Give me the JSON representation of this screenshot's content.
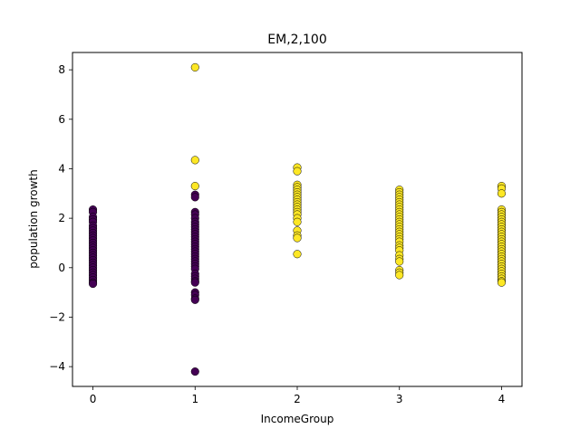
{
  "chart_data": {
    "type": "scatter",
    "title": "EM,2,100",
    "xlabel": "IncomeGroup",
    "ylabel": "population growth",
    "xlim": [
      -0.2,
      4.2
    ],
    "ylim": [
      -4.8,
      8.7
    ],
    "xticks": [
      0,
      1,
      2,
      3,
      4
    ],
    "yticks": [
      -4,
      -2,
      0,
      2,
      4,
      6,
      8
    ],
    "grid": false,
    "legend": "none",
    "colors": {
      "cluster_0": "#440154",
      "cluster_1": "#fde725"
    },
    "series": [
      {
        "cluster": 0,
        "color": "#440154",
        "points": [
          [
            0,
            2.35
          ],
          [
            0,
            2.25
          ],
          [
            0,
            2.05
          ],
          [
            0,
            1.95
          ],
          [
            0,
            1.85
          ],
          [
            0,
            1.7
          ],
          [
            0,
            1.6
          ],
          [
            0,
            1.5
          ],
          [
            0,
            1.4
          ],
          [
            0,
            1.3
          ],
          [
            0,
            1.2
          ],
          [
            0,
            1.1
          ],
          [
            0,
            1.0
          ],
          [
            0,
            0.9
          ],
          [
            0,
            0.8
          ],
          [
            0,
            0.7
          ],
          [
            0,
            0.6
          ],
          [
            0,
            0.5
          ],
          [
            0,
            0.4
          ],
          [
            0,
            0.3
          ],
          [
            0,
            0.2
          ],
          [
            0,
            0.1
          ],
          [
            0,
            0.0
          ],
          [
            0,
            -0.1
          ],
          [
            0,
            -0.2
          ],
          [
            0,
            -0.3
          ],
          [
            0,
            -0.4
          ],
          [
            0,
            -0.5
          ],
          [
            0,
            -0.6
          ],
          [
            0,
            -0.65
          ],
          [
            1,
            2.95
          ],
          [
            1,
            2.85
          ],
          [
            1,
            2.25
          ],
          [
            1,
            2.15
          ],
          [
            1,
            2.0
          ],
          [
            1,
            1.85
          ],
          [
            1,
            1.75
          ],
          [
            1,
            1.65
          ],
          [
            1,
            1.55
          ],
          [
            1,
            1.45
          ],
          [
            1,
            1.35
          ],
          [
            1,
            1.25
          ],
          [
            1,
            1.15
          ],
          [
            1,
            1.05
          ],
          [
            1,
            0.95
          ],
          [
            1,
            0.85
          ],
          [
            1,
            0.75
          ],
          [
            1,
            0.65
          ],
          [
            1,
            0.55
          ],
          [
            1,
            0.45
          ],
          [
            1,
            0.35
          ],
          [
            1,
            0.25
          ],
          [
            1,
            0.15
          ],
          [
            1,
            0.05
          ],
          [
            1,
            -0.05
          ],
          [
            1,
            -0.25
          ],
          [
            1,
            -0.35
          ],
          [
            1,
            -0.45
          ],
          [
            1,
            -0.55
          ],
          [
            1,
            -0.6
          ],
          [
            1,
            -1.0
          ],
          [
            1,
            -1.1
          ],
          [
            1,
            -1.25
          ],
          [
            1,
            -1.3
          ],
          [
            1,
            -4.2
          ]
        ]
      },
      {
        "cluster": 1,
        "color": "#fde725",
        "points": [
          [
            1,
            8.1
          ],
          [
            1,
            4.35
          ],
          [
            1,
            3.3
          ],
          [
            2,
            4.05
          ],
          [
            2,
            3.9
          ],
          [
            2,
            3.35
          ],
          [
            2,
            3.25
          ],
          [
            2,
            3.15
          ],
          [
            2,
            3.05
          ],
          [
            2,
            2.95
          ],
          [
            2,
            2.85
          ],
          [
            2,
            2.75
          ],
          [
            2,
            2.65
          ],
          [
            2,
            2.55
          ],
          [
            2,
            2.45
          ],
          [
            2,
            2.35
          ],
          [
            2,
            2.25
          ],
          [
            2,
            2.15
          ],
          [
            2,
            2.0
          ],
          [
            2,
            1.85
          ],
          [
            2,
            1.5
          ],
          [
            2,
            1.3
          ],
          [
            2,
            1.2
          ],
          [
            2,
            0.55
          ],
          [
            3,
            3.15
          ],
          [
            3,
            3.05
          ],
          [
            3,
            2.95
          ],
          [
            3,
            2.85
          ],
          [
            3,
            2.75
          ],
          [
            3,
            2.65
          ],
          [
            3,
            2.55
          ],
          [
            3,
            2.45
          ],
          [
            3,
            2.35
          ],
          [
            3,
            2.25
          ],
          [
            3,
            2.15
          ],
          [
            3,
            2.05
          ],
          [
            3,
            1.95
          ],
          [
            3,
            1.85
          ],
          [
            3,
            1.75
          ],
          [
            3,
            1.65
          ],
          [
            3,
            1.55
          ],
          [
            3,
            1.45
          ],
          [
            3,
            1.35
          ],
          [
            3,
            1.25
          ],
          [
            3,
            1.15
          ],
          [
            3,
            1.05
          ],
          [
            3,
            0.9
          ],
          [
            3,
            0.8
          ],
          [
            3,
            0.7
          ],
          [
            3,
            0.5
          ],
          [
            3,
            0.35
          ],
          [
            3,
            0.25
          ],
          [
            3,
            -0.1
          ],
          [
            3,
            -0.2
          ],
          [
            3,
            -0.3
          ],
          [
            4,
            3.3
          ],
          [
            4,
            3.2
          ],
          [
            4,
            3.0
          ],
          [
            4,
            2.35
          ],
          [
            4,
            2.25
          ],
          [
            4,
            2.15
          ],
          [
            4,
            2.05
          ],
          [
            4,
            1.95
          ],
          [
            4,
            1.85
          ],
          [
            4,
            1.75
          ],
          [
            4,
            1.65
          ],
          [
            4,
            1.55
          ],
          [
            4,
            1.45
          ],
          [
            4,
            1.35
          ],
          [
            4,
            1.25
          ],
          [
            4,
            1.15
          ],
          [
            4,
            1.05
          ],
          [
            4,
            0.95
          ],
          [
            4,
            0.85
          ],
          [
            4,
            0.75
          ],
          [
            4,
            0.65
          ],
          [
            4,
            0.55
          ],
          [
            4,
            0.45
          ],
          [
            4,
            0.35
          ],
          [
            4,
            0.25
          ],
          [
            4,
            0.15
          ],
          [
            4,
            0.05
          ],
          [
            4,
            -0.05
          ],
          [
            4,
            -0.15
          ],
          [
            4,
            -0.25
          ],
          [
            4,
            -0.35
          ],
          [
            4,
            -0.45
          ],
          [
            4,
            -0.55
          ],
          [
            4,
            -0.6
          ]
        ]
      }
    ]
  }
}
